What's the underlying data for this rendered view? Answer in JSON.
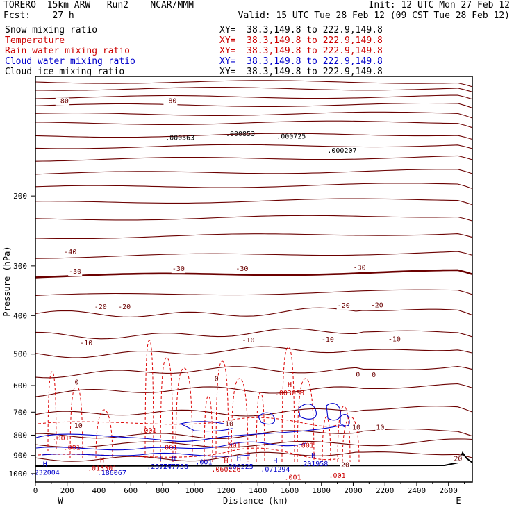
{
  "header": {
    "line1_left": "TORERO  15km ARW   Run2    NCAR/MMM",
    "line1_right": "Init: 12 UTC Mon 27 Feb 12",
    "line2_left": "Fcst:    27 h",
    "line2_right": "Valid: 15 UTC Tue 28 Feb 12 (09 CST Tue 28 Feb 12)"
  },
  "fields": [
    {
      "name": "Snow mixing ratio",
      "xy": "XY=  38.3,149.8 to 222.9,149.8",
      "color": "#000000",
      "xy_color": "#000000"
    },
    {
      "name": "Temperature",
      "xy": "XY=  38.3,149.8 to 222.9,149.8",
      "color": "#cc0000",
      "xy_color": "#cc0000"
    },
    {
      "name": "Rain water mixing ratio",
      "xy": "XY=  38.3,149.8 to 222.9,149.8",
      "color": "#cc0000",
      "xy_color": "#cc0000"
    },
    {
      "name": "Cloud water mixing ratio",
      "xy": "XY=  38.3,149.8 to 222.9,149.8",
      "color": "#0000cc",
      "xy_color": "#0000cc"
    },
    {
      "name": "Cloud ice mixing ratio",
      "xy": "XY=  38.3,149.8 to 222.9,149.8",
      "color": "#000000",
      "xy_color": "#000000"
    }
  ],
  "chart_data": {
    "type": "contour",
    "xlabel": "Distance (km)",
    "ylabel": "Pressure (hPa)",
    "xlim": [
      0,
      2750
    ],
    "ylim": [
      1050,
      100
    ],
    "y_scale": "log",
    "x_ticks": [
      0,
      200,
      400,
      600,
      800,
      1000,
      1200,
      1400,
      1600,
      1800,
      2000,
      2200,
      2400,
      2600
    ],
    "x_tick_labels": [
      "0",
      "200",
      "400",
      "600",
      "800",
      "1000",
      "1200",
      "1400",
      "1600",
      "1800",
      "2000",
      "2200",
      "2400",
      "2600"
    ],
    "y_ticks": [
      200,
      300,
      400,
      500,
      600,
      700,
      800,
      900,
      1000
    ],
    "y_tick_labels": [
      "200",
      "300",
      "400",
      "500",
      "600",
      "700",
      "800",
      "900",
      "1000"
    ],
    "x_end_labels": [
      "W",
      "E"
    ],
    "temperature_labels": [
      {
        "x": 170,
        "p": 115,
        "text": "-80"
      },
      {
        "x": 850,
        "p": 115,
        "text": "-80"
      },
      {
        "x": 220,
        "p": 276,
        "text": "-40"
      },
      {
        "x": 250,
        "p": 309,
        "text": "-30"
      },
      {
        "x": 900,
        "p": 304,
        "text": "-30"
      },
      {
        "x": 1300,
        "p": 304,
        "text": "-30"
      },
      {
        "x": 2040,
        "p": 302,
        "text": "-30"
      },
      {
        "x": 410,
        "p": 379,
        "text": "-20"
      },
      {
        "x": 560,
        "p": 379,
        "text": "-20"
      },
      {
        "x": 1940,
        "p": 376,
        "text": "-20"
      },
      {
        "x": 2150,
        "p": 375,
        "text": "-20"
      },
      {
        "x": 320,
        "p": 467,
        "text": "-10"
      },
      {
        "x": 1340,
        "p": 460,
        "text": "-10"
      },
      {
        "x": 1840,
        "p": 458,
        "text": "-10"
      },
      {
        "x": 2260,
        "p": 457,
        "text": "-10"
      },
      {
        "x": 260,
        "p": 587,
        "text": "0"
      },
      {
        "x": 1140,
        "p": 575,
        "text": "0"
      },
      {
        "x": 2030,
        "p": 561,
        "text": "0"
      },
      {
        "x": 2130,
        "p": 562,
        "text": "0"
      },
      {
        "x": 270,
        "p": 755,
        "text": "10"
      },
      {
        "x": 1220,
        "p": 747,
        "text": "10"
      },
      {
        "x": 2020,
        "p": 762,
        "text": "10"
      },
      {
        "x": 2170,
        "p": 763,
        "text": "10"
      },
      {
        "x": 1950,
        "p": 948,
        "text": "20"
      },
      {
        "x": 2660,
        "p": 914,
        "text": "20"
      }
    ],
    "extrema_labels": [
      {
        "x": 1600,
        "p": 620,
        "text": "H",
        "value": ".003038",
        "color": "#cc0000"
      },
      {
        "x": 1930,
        "p": 152,
        "text": "",
        "value": ".000207",
        "color": "#000000"
      },
      {
        "x": 910,
        "p": 141,
        "text": "",
        "value": ".000563",
        "color": "#000000"
      },
      {
        "x": 1290,
        "p": 138,
        "text": "",
        "value": ".000853",
        "color": "#000000"
      },
      {
        "x": 1610,
        "p": 140,
        "text": "",
        "value": ".000725",
        "color": "#000000"
      },
      {
        "x": 160,
        "p": 805,
        "text": "",
        "value": ".001",
        "color": "#cc0000"
      },
      {
        "x": 230,
        "p": 850,
        "text": "",
        "value": ".001",
        "color": "#cc0000"
      },
      {
        "x": 710,
        "p": 770,
        "text": "",
        "value": ".001",
        "color": "#cc0000"
      },
      {
        "x": 840,
        "p": 850,
        "text": "",
        "value": ".001",
        "color": "#cc0000"
      },
      {
        "x": 1240,
        "p": 840,
        "text": "",
        "value": ".001",
        "color": "#cc0000"
      },
      {
        "x": 1700,
        "p": 840,
        "text": "",
        "value": ".001",
        "color": "#cc0000"
      },
      {
        "x": 1900,
        "p": 1000,
        "text": "",
        "value": ".001",
        "color": "#cc0000"
      },
      {
        "x": 1620,
        "p": 1010,
        "text": "",
        "value": ".001",
        "color": "#cc0000"
      },
      {
        "x": 1060,
        "p": 925,
        "text": "",
        "value": ".001",
        "color": "#0000cc"
      },
      {
        "x": 60,
        "p": 982,
        "text": "H",
        "value": ".232004",
        "color": "#0000cc"
      },
      {
        "x": 420,
        "p": 960,
        "text": "H",
        "value": ".013301",
        "color": "#cc0000"
      },
      {
        "x": 480,
        "p": 985,
        "text": "",
        "value": ".186067",
        "color": "#0000cc"
      },
      {
        "x": 780,
        "p": 950,
        "text": "H",
        "value": ".23777",
        "color": "#0000cc"
      },
      {
        "x": 870,
        "p": 950,
        "text": "H",
        "value": ".247758",
        "color": "#0000cc"
      },
      {
        "x": 1280,
        "p": 950,
        "text": "H",
        "value": ".200225",
        "color": "#0000cc"
      },
      {
        "x": 1200,
        "p": 965,
        "text": "H",
        "value": ".060226",
        "color": "#cc0000"
      },
      {
        "x": 1510,
        "p": 965,
        "text": "H",
        "value": ".071294",
        "color": "#0000cc"
      },
      {
        "x": 1750,
        "p": 935,
        "text": "H",
        "value": ".201958",
        "color": "#0000cc"
      }
    ]
  }
}
